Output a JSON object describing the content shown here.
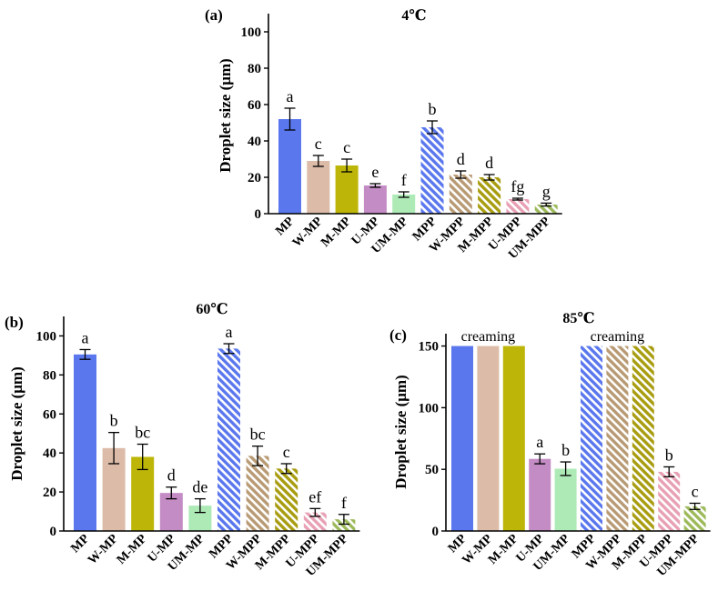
{
  "chart_data": [
    {
      "panel": "(a)",
      "title": "4℃",
      "type": "bar",
      "ylabel": "Droplet size (μm)",
      "ylim": [
        0,
        110
      ],
      "yticks": [
        0,
        20,
        40,
        60,
        80,
        100
      ],
      "categories": [
        "MP",
        "W-MP",
        "M-MP",
        "U-MP",
        "UM-MP",
        "MPP",
        "W-MPP",
        "M-MPP",
        "U-MPP",
        "UM-MPP"
      ],
      "values": [
        52,
        29,
        26.5,
        15.5,
        10.5,
        47.5,
        21.5,
        20,
        8,
        5
      ],
      "errors": [
        6,
        3,
        3.5,
        1,
        1.5,
        3.5,
        2,
        1.5,
        0.5,
        0.8
      ],
      "letters": [
        "a",
        "c",
        "c",
        "e",
        "f",
        "b",
        "d",
        "d",
        "fg",
        "g"
      ],
      "notes": []
    },
    {
      "panel": "(b)",
      "title": "60℃",
      "type": "bar",
      "ylabel": "Droplet size (μm)",
      "ylim": [
        0,
        110
      ],
      "yticks": [
        0,
        20,
        40,
        60,
        80,
        100
      ],
      "categories": [
        "MP",
        "W-MP",
        "M-MP",
        "U-MP",
        "UM-MP",
        "MPP",
        "W-MPP",
        "M-MPP",
        "U-MPP",
        "UM-MPP"
      ],
      "values": [
        90.5,
        42.5,
        38,
        19.5,
        13,
        93.5,
        38.5,
        32,
        9.5,
        6
      ],
      "errors": [
        2.5,
        8,
        6.5,
        3,
        3.5,
        2.5,
        5,
        2.5,
        2,
        2.5
      ],
      "letters": [
        "a",
        "b",
        "bc",
        "d",
        "de",
        "a",
        "bc",
        "c",
        "ef",
        "f"
      ],
      "notes": []
    },
    {
      "panel": "(c)",
      "title": "85℃",
      "type": "bar",
      "ylabel": "Droplet size (μm)",
      "ylim": [
        0,
        160
      ],
      "yticks": [
        0,
        50,
        100,
        150
      ],
      "categories": [
        "MP",
        "W-MP",
        "M-MP",
        "U-MP",
        "UM-MP",
        "MPP",
        "W-MPP",
        "M-MPP",
        "U-MPP",
        "UM-MPP"
      ],
      "values": [
        150,
        150,
        150,
        58.5,
        50.5,
        150,
        150,
        150,
        48,
        20
      ],
      "errors": [
        null,
        null,
        null,
        4,
        5.5,
        null,
        null,
        null,
        4,
        2.5
      ],
      "letters": [
        "",
        "",
        "",
        "a",
        "b",
        "",
        "",
        "",
        "b",
        "c"
      ],
      "notes": [
        "creaming",
        "creaming"
      ]
    }
  ],
  "series_colors": [
    "#5a77ee",
    "#dcbca8",
    "#bdb608",
    "#c48cc4",
    "#aeeab6",
    "#5a77ee",
    "#b89a74",
    "#a89d10",
    "#e8a0b4",
    "#9cba5a"
  ],
  "hatched": [
    false,
    false,
    false,
    false,
    false,
    true,
    true,
    true,
    true,
    true
  ]
}
